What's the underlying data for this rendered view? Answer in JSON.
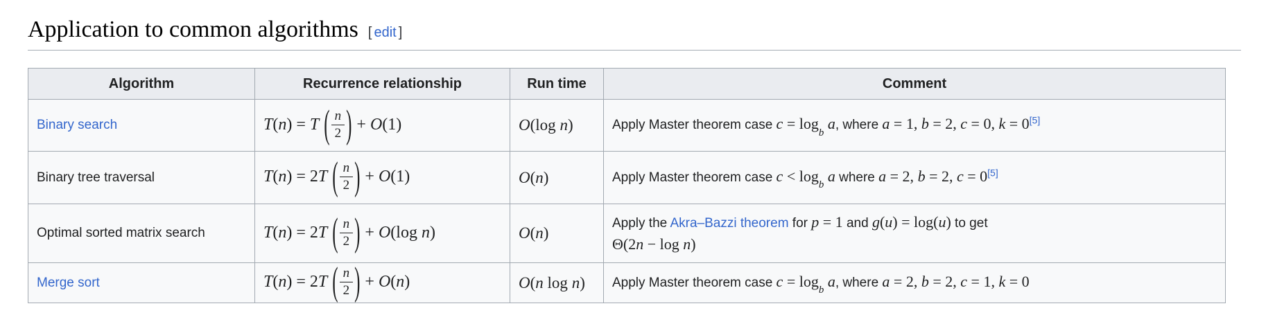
{
  "colors": {
    "link": "#3366cc",
    "text": "#202122",
    "border": "#a2a9b1",
    "header_bg": "#eaecf0",
    "cell_bg": "#f8f9fa",
    "heading": "#000000"
  },
  "page": {
    "heading": "Application to common algorithms",
    "edit": {
      "bracket_open": "[",
      "label": "edit",
      "bracket_close": "]"
    }
  },
  "table": {
    "headers": [
      "Algorithm",
      "Recurrence relationship",
      "Run time",
      "Comment"
    ],
    "rows": [
      {
        "algorithm": "Binary search",
        "recurrence": {
          "lead": "T(n) = T",
          "frac_num": "n",
          "frac_den": "2",
          "tail": "+ O(1)"
        },
        "runtime": "O(log n)",
        "comment": {
          "pre": "Apply Master theorem case ",
          "math1": "c = log",
          "math1_sub": "b",
          "math1_end": " a",
          "mid": ", where ",
          "math2": "a = 1, b = 2, c = 0, k = 0",
          "ref": "[5]"
        }
      },
      {
        "algorithm": "Binary tree traversal",
        "recurrence": {
          "lead": "T(n) = 2T",
          "frac_num": "n",
          "frac_den": "2",
          "tail": "+ O(1)"
        },
        "runtime": "O(n)",
        "comment": {
          "pre": "Apply Master theorem case ",
          "math1": "c < log",
          "math1_sub": "b",
          "math1_end": " a",
          "mid": " where ",
          "math2": "a = 2, b = 2, c = 0",
          "ref": "[5]"
        }
      },
      {
        "algorithm": "Optimal sorted matrix search",
        "recurrence": {
          "lead": "T(n) = 2T",
          "frac_num": "n",
          "frac_den": "2",
          "tail": "+ O(log n)"
        },
        "runtime": "O(n)",
        "comment": {
          "pre": "Apply the ",
          "link_label": "Akra–Bazzi theorem",
          "mid1": " for ",
          "math1": "p = 1",
          "mid2": " and ",
          "math2": "g(u) = log(u)",
          "mid3": " to get",
          "line2": "Θ(2n − log n)"
        }
      },
      {
        "algorithm": "Merge sort",
        "recurrence": {
          "lead": "T(n) = 2T",
          "frac_num": "n",
          "frac_den": "2",
          "tail": "+ O(n)"
        },
        "runtime": "O(n log n)",
        "comment": {
          "pre": "Apply Master theorem case ",
          "math1": "c = log",
          "math1_sub": "b",
          "math1_end": " a",
          "mid": ", where ",
          "math2": "a = 2, b = 2, c = 1, k = 0",
          "ref": ""
        }
      }
    ]
  }
}
